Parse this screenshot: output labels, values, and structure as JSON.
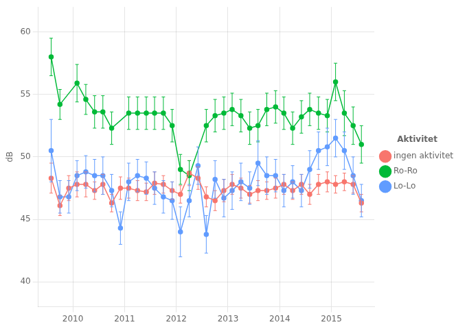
{
  "chart_data": {
    "type": "line",
    "y_label": "dB",
    "legend_title": "Aktivitet",
    "legend": "right",
    "grid": true,
    "marker": "circle",
    "xlim": [
      2009.33,
      2015.83
    ],
    "xticks": [
      2010,
      2011,
      2012,
      2013,
      2014,
      2015
    ],
    "ylim": [
      38,
      62
    ],
    "yticks": [
      40,
      45,
      50,
      55,
      60
    ],
    "series": [
      {
        "name": "ingen aktivitet",
        "color": "#F8766D",
        "x": [
          2009.58,
          2009.75,
          2009.92,
          2010.08,
          2010.25,
          2010.42,
          2010.58,
          2010.75,
          2010.92,
          2011.08,
          2011.25,
          2011.42,
          2011.58,
          2011.75,
          2011.92,
          2012.08,
          2012.25,
          2012.42,
          2012.58,
          2012.75,
          2012.92,
          2013.08,
          2013.25,
          2013.42,
          2013.58,
          2013.75,
          2013.92,
          2014.08,
          2014.25,
          2014.42,
          2014.58,
          2014.75,
          2014.92,
          2015.08,
          2015.25,
          2015.42,
          2015.58
        ],
        "values": [
          48.3,
          46.1,
          47.5,
          47.8,
          47.8,
          47.3,
          47.8,
          46.3,
          47.5,
          47.5,
          47.3,
          47.2,
          47.9,
          47.8,
          47.3,
          47.0,
          48.7,
          48.3,
          46.8,
          46.5,
          47.3,
          47.8,
          47.5,
          47.0,
          47.3,
          47.3,
          47.5,
          47.8,
          47.3,
          47.8,
          47.0,
          47.8,
          48.0,
          47.8,
          48.0,
          47.8,
          46.3
        ],
        "yerr_lo": [
          1.2,
          0.8,
          1.0,
          1.0,
          1.0,
          0.7,
          0.8,
          0.7,
          0.9,
          0.8,
          0.8,
          0.7,
          0.9,
          0.7,
          0.7,
          0.7,
          1.0,
          0.9,
          0.8,
          0.8,
          0.9,
          0.8,
          0.8,
          0.7,
          0.8,
          0.7,
          0.8,
          0.8,
          0.7,
          0.8,
          0.8,
          0.8,
          0.8,
          0.7,
          0.7,
          0.7,
          0.7
        ],
        "yerr_hi": [
          1.2,
          0.8,
          1.0,
          1.0,
          1.0,
          0.7,
          0.8,
          0.7,
          0.9,
          0.8,
          0.8,
          0.7,
          0.9,
          0.7,
          0.7,
          0.7,
          1.0,
          0.9,
          0.8,
          0.8,
          0.9,
          0.8,
          0.8,
          0.7,
          0.8,
          0.7,
          0.8,
          0.8,
          0.7,
          0.8,
          0.8,
          0.8,
          0.8,
          0.7,
          0.7,
          0.7,
          0.7
        ]
      },
      {
        "name": "Ro-Ro",
        "color": "#00BA38",
        "x": [
          2009.58,
          2009.75,
          2010.08,
          2010.25,
          2010.42,
          2010.58,
          2010.75,
          2011.08,
          2011.25,
          2011.42,
          2011.58,
          2011.75,
          2011.92,
          2012.08,
          2012.25,
          2012.58,
          2012.75,
          2012.92,
          2013.08,
          2013.25,
          2013.42,
          2013.58,
          2013.75,
          2013.92,
          2014.08,
          2014.25,
          2014.42,
          2014.58,
          2014.75,
          2014.92,
          2015.08,
          2015.25,
          2015.42,
          2015.58
        ],
        "values": [
          58.0,
          54.2,
          55.9,
          54.6,
          53.6,
          53.6,
          52.3,
          53.5,
          53.5,
          53.5,
          53.5,
          53.5,
          52.5,
          49.0,
          48.5,
          52.5,
          53.3,
          53.5,
          53.8,
          53.3,
          52.3,
          52.5,
          53.8,
          54.0,
          53.5,
          52.3,
          53.2,
          53.8,
          53.5,
          53.3,
          56.0,
          53.5,
          52.5,
          51.0
        ],
        "yerr_lo": [
          1.5,
          1.2,
          1.5,
          1.2,
          1.3,
          1.3,
          1.3,
          1.3,
          1.3,
          1.3,
          1.3,
          1.3,
          1.3,
          1.2,
          1.2,
          1.3,
          1.3,
          1.3,
          1.3,
          1.3,
          1.3,
          1.3,
          1.3,
          1.3,
          1.3,
          1.3,
          1.3,
          1.3,
          1.3,
          1.3,
          1.5,
          1.8,
          1.5,
          1.5
        ],
        "yerr_hi": [
          1.5,
          1.2,
          1.5,
          1.2,
          1.3,
          1.3,
          1.3,
          1.3,
          1.3,
          1.3,
          1.3,
          1.3,
          1.3,
          1.2,
          1.2,
          1.3,
          1.3,
          1.3,
          1.3,
          1.3,
          1.3,
          1.3,
          1.3,
          1.3,
          1.3,
          1.3,
          1.3,
          1.3,
          1.3,
          1.3,
          1.5,
          1.8,
          1.5,
          1.5
        ]
      },
      {
        "name": "Lo-Lo",
        "color": "#619CFF",
        "x": [
          2009.58,
          2009.75,
          2009.92,
          2010.08,
          2010.25,
          2010.42,
          2010.58,
          2010.75,
          2010.92,
          2011.08,
          2011.25,
          2011.42,
          2011.58,
          2011.75,
          2011.92,
          2012.08,
          2012.25,
          2012.42,
          2012.58,
          2012.75,
          2012.92,
          2013.08,
          2013.25,
          2013.42,
          2013.58,
          2013.75,
          2013.92,
          2014.08,
          2014.25,
          2014.42,
          2014.58,
          2014.75,
          2014.92,
          2015.08,
          2015.25,
          2015.42,
          2015.58
        ],
        "values": [
          50.5,
          46.8,
          46.8,
          48.5,
          48.8,
          48.5,
          48.5,
          47.3,
          44.3,
          48.0,
          48.5,
          48.3,
          47.5,
          46.8,
          46.5,
          44.0,
          46.5,
          49.3,
          43.8,
          48.2,
          46.7,
          47.3,
          48.0,
          47.5,
          49.5,
          48.5,
          48.5,
          47.3,
          48.0,
          47.3,
          49.0,
          50.5,
          50.8,
          51.5,
          50.5,
          48.5,
          46.5
        ],
        "yerr_lo": [
          2.5,
          1.3,
          1.3,
          1.2,
          1.3,
          1.3,
          1.5,
          1.3,
          1.3,
          1.5,
          1.3,
          1.3,
          1.3,
          1.3,
          1.5,
          2.0,
          1.3,
          1.5,
          1.5,
          1.5,
          1.5,
          1.5,
          1.5,
          1.3,
          1.8,
          1.5,
          1.3,
          1.3,
          1.3,
          1.3,
          1.5,
          1.5,
          1.5,
          1.5,
          1.5,
          1.5,
          1.3
        ],
        "yerr_hi": [
          2.5,
          1.3,
          1.3,
          1.2,
          1.3,
          1.3,
          1.5,
          1.3,
          1.3,
          1.5,
          1.3,
          1.3,
          1.3,
          1.3,
          1.5,
          2.0,
          1.3,
          1.5,
          1.5,
          1.5,
          1.5,
          1.5,
          1.5,
          1.3,
          1.8,
          1.5,
          1.3,
          1.3,
          1.3,
          1.3,
          1.5,
          1.5,
          1.5,
          1.5,
          1.5,
          1.5,
          1.3
        ]
      }
    ]
  }
}
